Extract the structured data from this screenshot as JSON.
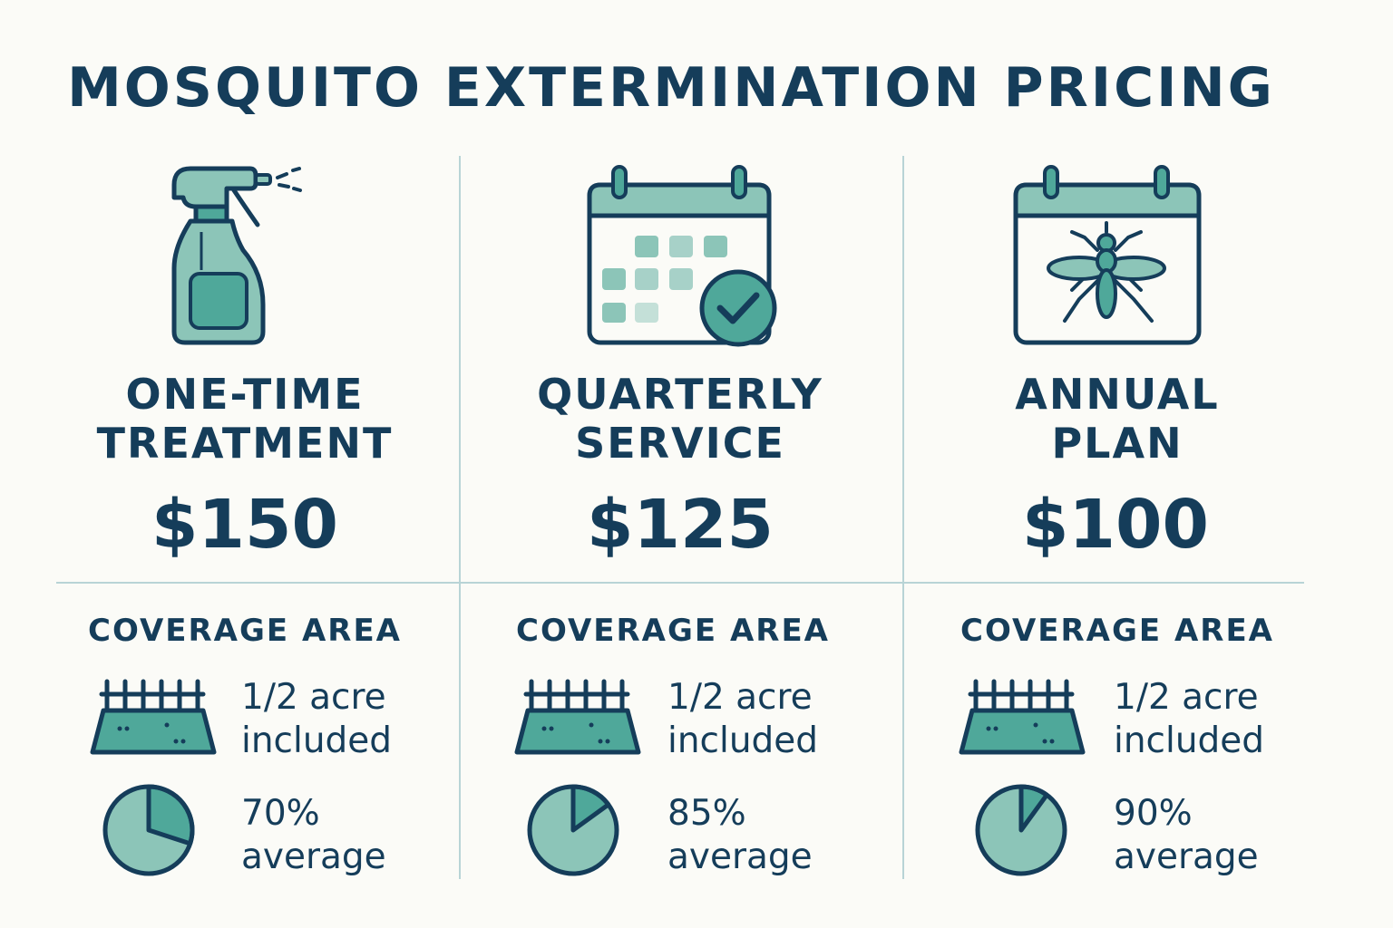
{
  "title": "MOSQUITO EXTERMINATION PRICING",
  "colors": {
    "background": "#fbfbf7",
    "text": "#153d5a",
    "accent_dark": "#4fa89a",
    "accent_light": "#8cc5b8",
    "divider": "#b8d4d6"
  },
  "plans": [
    {
      "icon": "spray-bottle-icon",
      "name_line1": "ONE-TIME",
      "name_line2": "TREATMENT",
      "price": "$150",
      "coverage_label": "COVERAGE AREA",
      "area_line1": "1/2 acre",
      "area_line2": "included",
      "effectiveness_line1": "70%",
      "effectiveness_line2": "average",
      "effectiveness_percent": 70
    },
    {
      "icon": "calendar-check-icon",
      "name_line1": "QUARTERLY",
      "name_line2": "SERVICE",
      "price": "$125",
      "coverage_label": "COVERAGE AREA",
      "area_line1": "1/2 acre",
      "area_line2": "included",
      "effectiveness_line1": "85%",
      "effectiveness_line2": "average",
      "effectiveness_percent": 85
    },
    {
      "icon": "calendar-mosquito-icon",
      "name_line1": "ANNUAL",
      "name_line2": "PLAN",
      "price": "$100",
      "coverage_label": "COVERAGE AREA",
      "area_line1": "1/2 acre",
      "area_line2": "included",
      "effectiveness_line1": "90%",
      "effectiveness_line2": "average",
      "effectiveness_percent": 90
    }
  ]
}
